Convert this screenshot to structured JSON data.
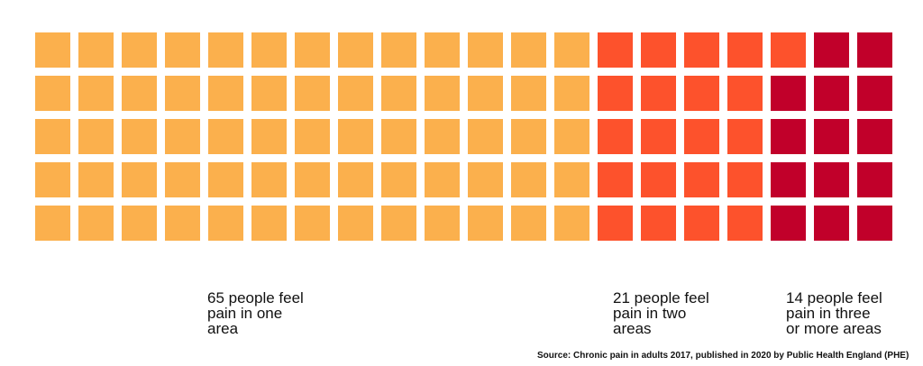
{
  "chart_data": {
    "type": "waffle",
    "total": 100,
    "rows": 5,
    "columns": 20,
    "fill_order": "column-major",
    "categories": [
      {
        "label": "65 people feel\npain in one\narea",
        "value": 65,
        "color": "#FBB04D"
      },
      {
        "label": "21 people feel\npain in two\nareas",
        "value": 21,
        "color": "#FD522C"
      },
      {
        "label": "14 people feel\npain in three\nor more areas",
        "value": 14,
        "color": "#C1002A"
      }
    ]
  },
  "source": "Source:  Chronic pain in adults 2017, published in 2020 by Public Health England (PHE)"
}
